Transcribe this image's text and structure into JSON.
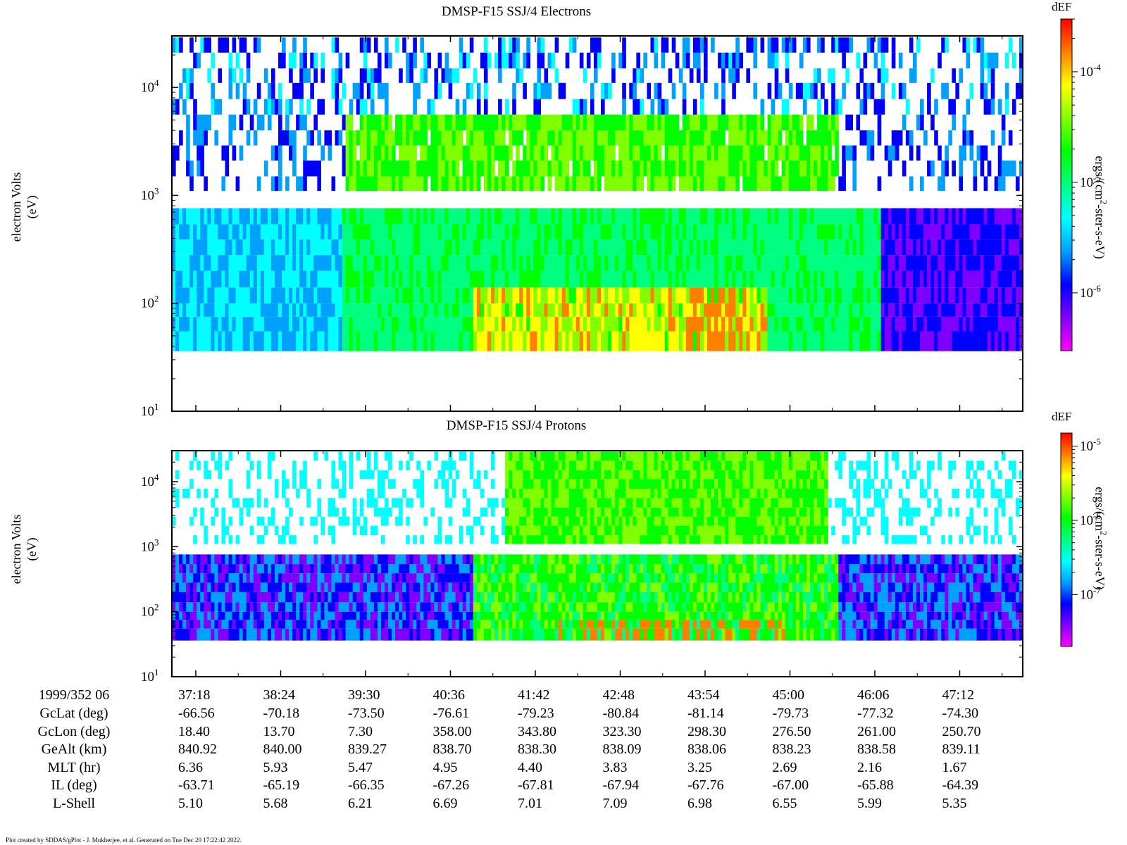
{
  "panels": [
    {
      "title": "DMSP-F15 SSJ/4 Electrons",
      "ylabel_line1": "electron Volts",
      "ylabel_line2": "(eV)",
      "colorbar_title": "dEF",
      "colorbar_label": "ergs/(cm2-ster-s-eV)",
      "colorbar_ticks": [
        "10-4",
        "10-5",
        "10-6"
      ]
    },
    {
      "title": "DMSP-F15 SSJ/4 Protons",
      "ylabel_line1": "electron Volts",
      "ylabel_line2": "(eV)",
      "colorbar_title": "dEF",
      "colorbar_label": "ergs/(cm2-ster-s-eV)",
      "colorbar_ticks": [
        "10-5",
        "10-6",
        "10-7"
      ]
    }
  ],
  "chart_data": [
    {
      "type": "heatmap",
      "title": "DMSP-F15 SSJ/4 Electrons",
      "ylabel": "electron Volts (eV)",
      "yscale": "log",
      "ylim": [
        10,
        30000
      ],
      "yticks": [
        "10^1",
        "10^2",
        "10^3",
        "10^4"
      ],
      "colorbar": {
        "title": "dEF",
        "label": "ergs/(cm^2-ster-s-eV)",
        "scale": "log",
        "range": [
          3e-07,
          0.0003
        ],
        "ticks": [
          "10^-4",
          "10^-5",
          "10^-6"
        ]
      },
      "colormap": [
        "#ff00ff",
        "#8000ff",
        "#0000ff",
        "#00a0ff",
        "#00ffff",
        "#00ff80",
        "#00ff00",
        "#80ff00",
        "#ffff00",
        "#ff8000",
        "#ff0000"
      ],
      "energy_channel_bands": [
        [
          36,
          55
        ],
        [
          55,
          75
        ],
        [
          75,
          100
        ],
        [
          100,
          140
        ],
        [
          140,
          200
        ],
        [
          200,
          280
        ],
        [
          280,
          390
        ],
        [
          390,
          540
        ],
        [
          540,
          760
        ],
        [
          1100,
          1500
        ],
        [
          1500,
          2100
        ],
        [
          2100,
          2900
        ],
        [
          2900,
          4000
        ],
        [
          4000,
          5600
        ],
        [
          5600,
          7800
        ],
        [
          7800,
          11000
        ],
        [
          11000,
          15000
        ],
        [
          15000,
          21000
        ],
        [
          21000,
          29000
        ]
      ]
    },
    {
      "type": "heatmap",
      "title": "DMSP-F15 SSJ/4 Protons",
      "ylabel": "electron Volts (eV)",
      "yscale": "log",
      "ylim": [
        10,
        30000
      ],
      "yticks": [
        "10^1",
        "10^2",
        "10^3",
        "10^4"
      ],
      "colorbar": {
        "title": "dEF",
        "label": "ergs/(cm^2-ster-s-eV)",
        "scale": "log",
        "range": [
          2e-08,
          1.5e-05
        ],
        "ticks": [
          "10^-5",
          "10^-6",
          "10^-7"
        ]
      },
      "colormap": [
        "#ff00ff",
        "#8000ff",
        "#0000ff",
        "#00a0ff",
        "#00ffff",
        "#00ff80",
        "#00ff00",
        "#80ff00",
        "#ffff00",
        "#ff8000",
        "#ff0000"
      ],
      "energy_channel_bands": [
        [
          36,
          55
        ],
        [
          55,
          75
        ],
        [
          75,
          100
        ],
        [
          100,
          140
        ],
        [
          140,
          200
        ],
        [
          200,
          280
        ],
        [
          280,
          390
        ],
        [
          390,
          540
        ],
        [
          540,
          760
        ],
        [
          1100,
          1500
        ],
        [
          1500,
          2100
        ],
        [
          2100,
          2900
        ],
        [
          2900,
          4000
        ],
        [
          4000,
          5600
        ],
        [
          5600,
          7800
        ],
        [
          7800,
          11000
        ],
        [
          11000,
          15000
        ],
        [
          15000,
          21000
        ],
        [
          21000,
          29000
        ]
      ]
    }
  ],
  "x_axis": {
    "label": "1999/352 06",
    "ticks": [
      "37:18",
      "38:24",
      "39:30",
      "40:36",
      "41:42",
      "42:48",
      "43:54",
      "45:00",
      "46:06",
      "47:12"
    ]
  },
  "ephemeris": [
    {
      "label": "GcLat (deg)",
      "values": [
        "-66.56",
        "-70.18",
        "-73.50",
        "-76.61",
        "-79.23",
        "-80.84",
        "-81.14",
        "-79.73",
        "-77.32",
        "-74.30"
      ]
    },
    {
      "label": "GcLon (deg)",
      "values": [
        "18.40",
        "13.70",
        "7.30",
        "358.00",
        "343.80",
        "323.30",
        "298.30",
        "276.50",
        "261.00",
        "250.70"
      ]
    },
    {
      "label": "GeAlt (km)",
      "values": [
        "840.92",
        "840.00",
        "839.27",
        "838.70",
        "838.30",
        "838.09",
        "838.06",
        "838.23",
        "838.58",
        "839.11"
      ]
    },
    {
      "label": "MLT (hr)",
      "values": [
        "6.36",
        "5.93",
        "5.47",
        "4.95",
        "4.40",
        "3.83",
        "3.25",
        "2.69",
        "2.16",
        "1.67"
      ]
    },
    {
      "label": "IL (deg)",
      "values": [
        "-63.71",
        "-65.19",
        "-66.35",
        "-67.26",
        "-67.81",
        "-67.94",
        "-67.76",
        "-67.00",
        "-65.88",
        "-64.39"
      ]
    },
    {
      "label": "L-Shell",
      "values": [
        "5.10",
        "5.68",
        "6.21",
        "6.69",
        "7.01",
        "7.09",
        "6.98",
        "6.55",
        "5.99",
        "5.35"
      ]
    }
  ],
  "footer": "Plot created by SDDAS/gPlot - J. Mukherjee, et al.  Generated on Tue Dec 20 17:22:42 2022."
}
